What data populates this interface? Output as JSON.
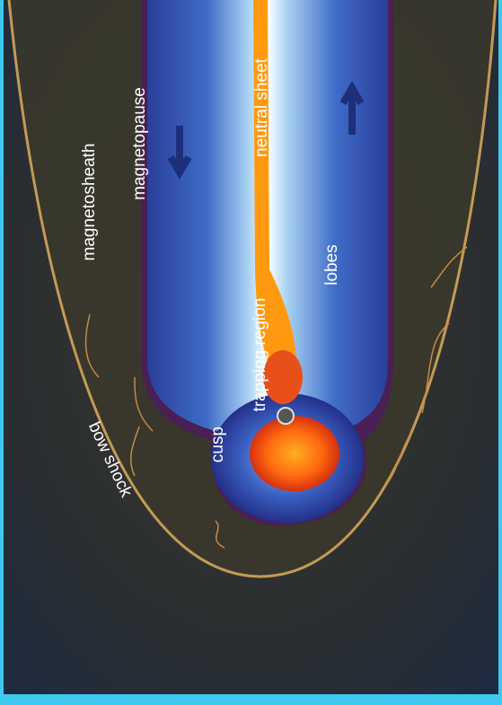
{
  "labels": {
    "magnetosheath": "magnetosheath",
    "magnetopause": "magnetopause",
    "neutral_sheet": "neutral sheet",
    "lobes": "lobes",
    "trapping_region": "trapping region",
    "cusp": "cusp",
    "bow_shock": "bow shock"
  }
}
